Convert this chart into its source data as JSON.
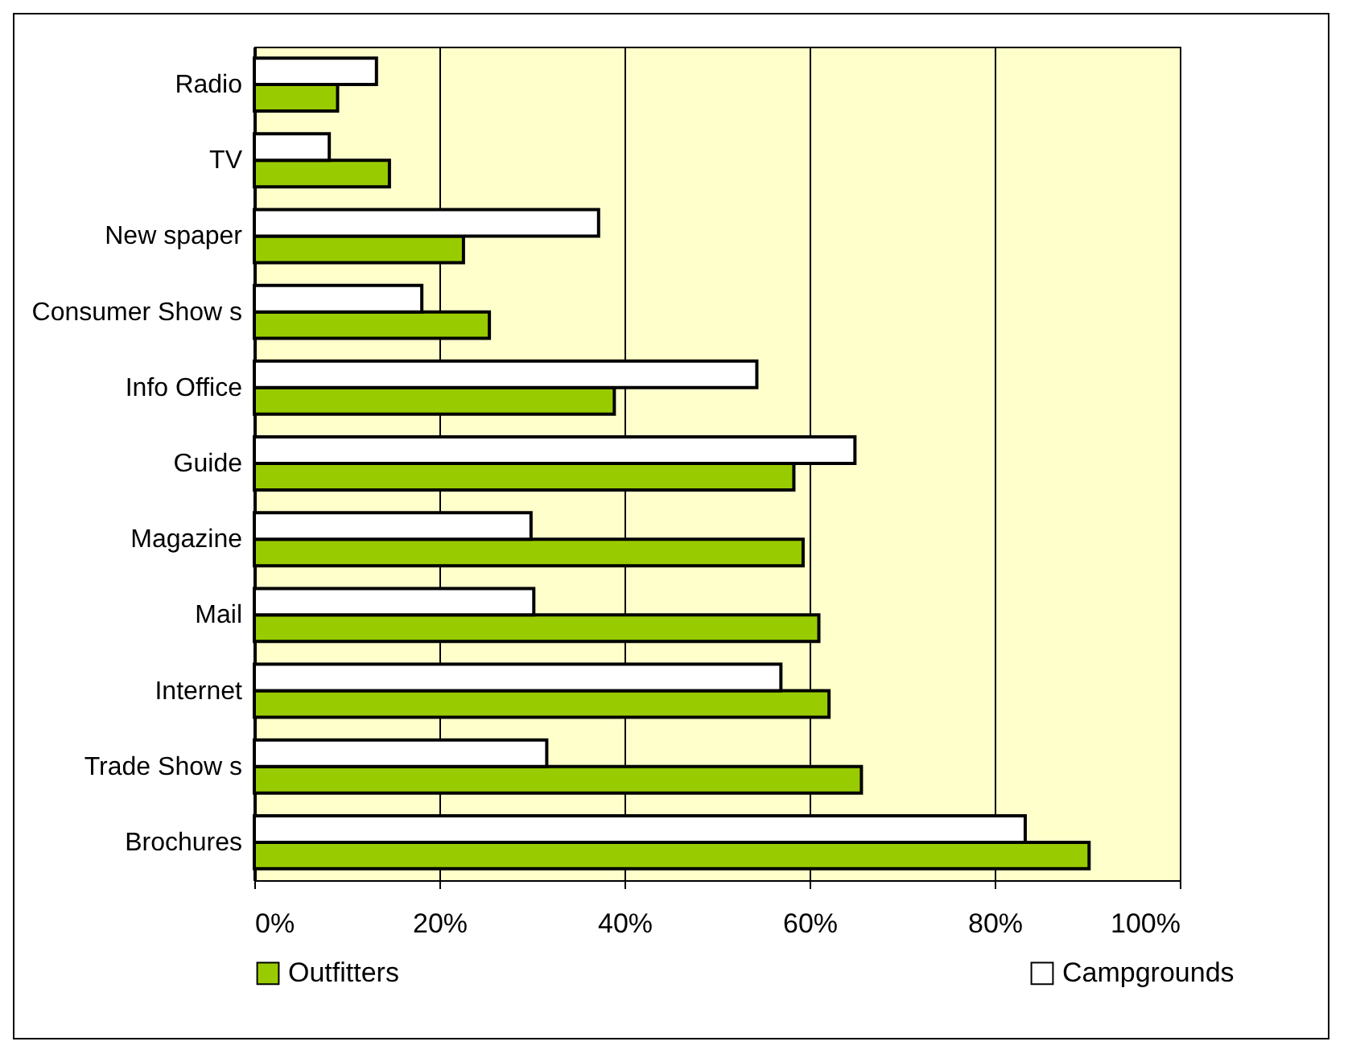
{
  "chart_data": {
    "type": "bar",
    "orientation": "horizontal",
    "categories": [
      "Radio",
      "TV",
      "New spaper",
      "Consumer Show s",
      "Info Office",
      "Guide",
      "Magazine",
      "Mail",
      "Internet",
      "Trade Show s",
      "Brochures"
    ],
    "series": [
      {
        "name": "Outfitters",
        "color": "#99cc00",
        "values": [
          9.0,
          14.6,
          22.6,
          25.4,
          38.9,
          58.3,
          59.3,
          61.0,
          62.1,
          65.6,
          90.2
        ]
      },
      {
        "name": "Campgrounds",
        "color": "#ffffff",
        "values": [
          13.2,
          8.1,
          37.2,
          18.1,
          54.3,
          64.9,
          29.9,
          30.2,
          56.9,
          31.6,
          83.3
        ]
      }
    ],
    "xlim": [
      0,
      100
    ],
    "xticks": [
      {
        "value": 0,
        "label": "0%"
      },
      {
        "value": 20,
        "label": "20%"
      },
      {
        "value": 40,
        "label": "40%"
      },
      {
        "value": 60,
        "label": "60%"
      },
      {
        "value": 80,
        "label": "80%"
      },
      {
        "value": 100,
        "label": "100%"
      }
    ],
    "grid": "x",
    "legend": "bottom"
  }
}
